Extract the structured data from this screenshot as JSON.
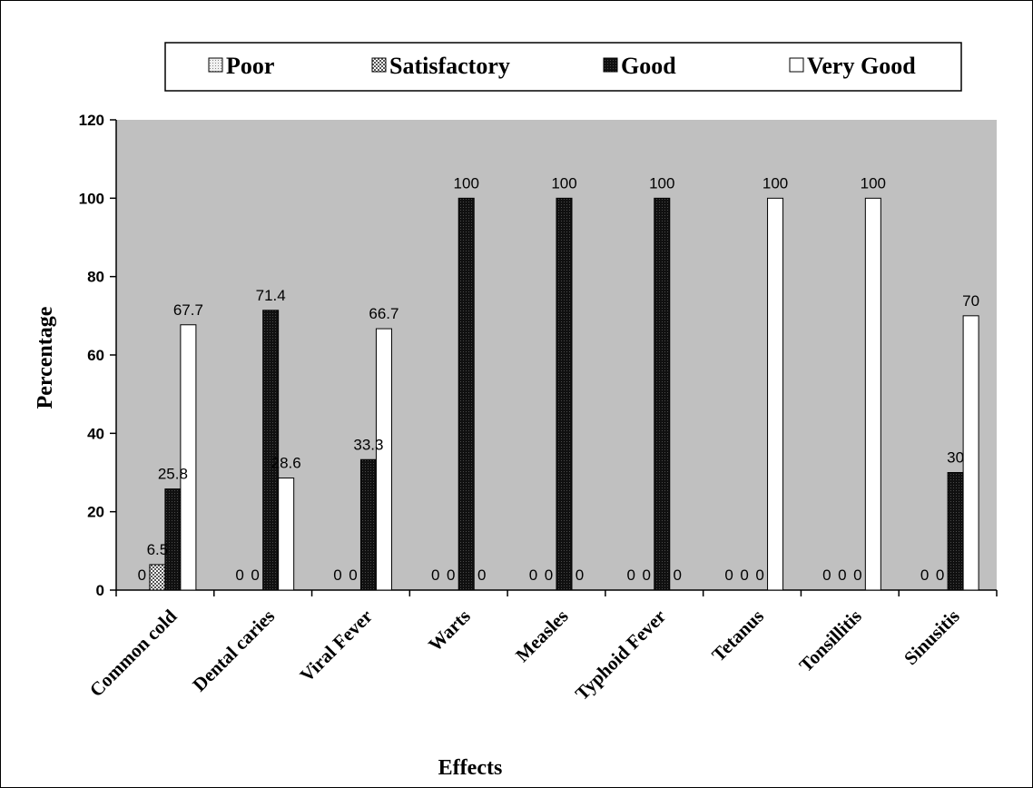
{
  "chart_data": {
    "type": "bar",
    "title": "",
    "xlabel": "Effects",
    "ylabel": "Percentage",
    "ylim": [
      0,
      120
    ],
    "yticks": [
      0,
      20,
      40,
      60,
      80,
      100,
      120
    ],
    "grid": false,
    "legend_position": "top",
    "plot_background": "#c0c0c0",
    "categories": [
      "Common cold",
      "Dental caries",
      "Viral Fever",
      "Warts",
      "Measles",
      "Typhoid Fever",
      "Tetanus",
      "Tonsillitis",
      "Sinusitis"
    ],
    "series": [
      {
        "name": "Poor",
        "pattern": "dots-light",
        "values": [
          0,
          0,
          0,
          0,
          0,
          0,
          0,
          0,
          0
        ],
        "labels": [
          "0",
          "0",
          "0",
          "0",
          "0",
          "0",
          "0",
          "0",
          "0"
        ]
      },
      {
        "name": "Satisfactory",
        "pattern": "checker",
        "values": [
          6.5,
          0,
          0,
          0,
          0,
          0,
          0,
          0,
          0
        ],
        "labels": [
          "6.5",
          "0",
          "0",
          "0",
          "0",
          "0",
          "0",
          "0",
          "0"
        ]
      },
      {
        "name": "Good",
        "pattern": "dark",
        "values": [
          25.8,
          71.4,
          33.3,
          100,
          100,
          100,
          0,
          0,
          30
        ],
        "labels": [
          "25.8",
          "71.4",
          "33.3",
          "100",
          "100",
          "100",
          "0",
          "0",
          "30"
        ]
      },
      {
        "name": "Very Good",
        "pattern": "white",
        "values": [
          67.7,
          28.6,
          66.7,
          0,
          0,
          0,
          100,
          100,
          70
        ],
        "labels": [
          "67.7",
          "28.6",
          "66.7",
          "0",
          "0",
          "0",
          "100",
          "100",
          "70"
        ]
      }
    ]
  }
}
